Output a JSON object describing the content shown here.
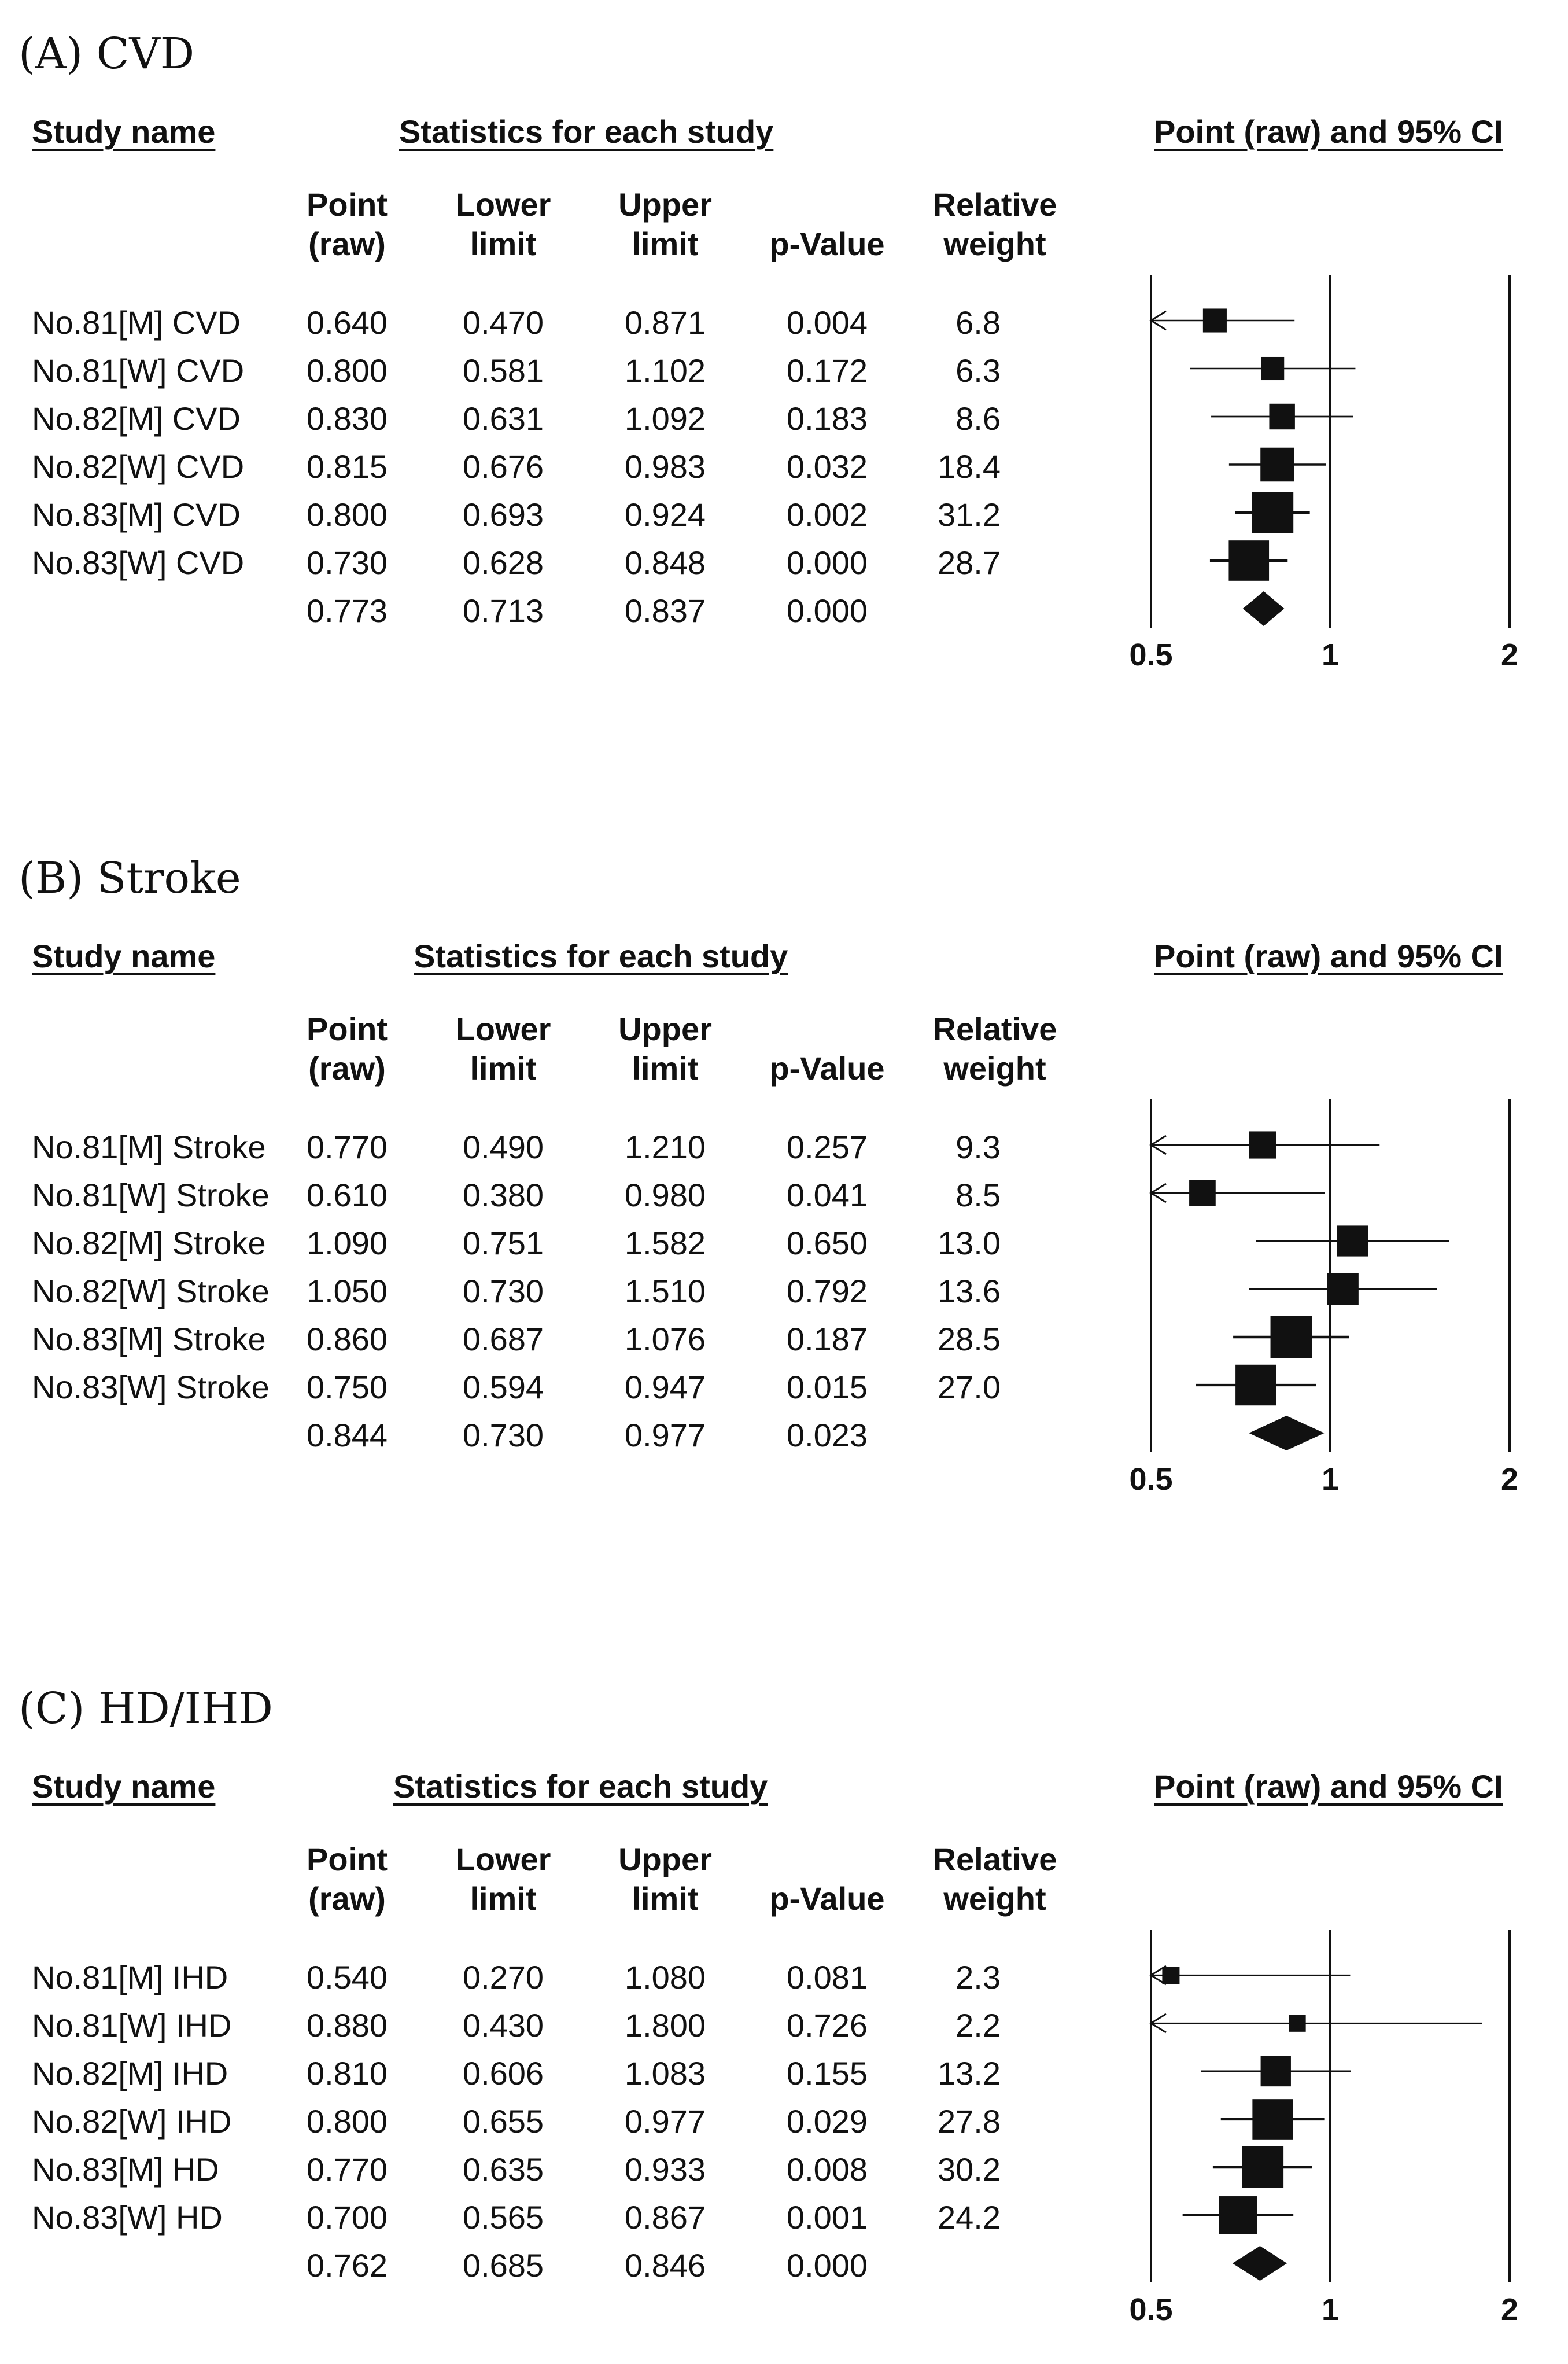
{
  "chart_data": [
    {
      "type": "forest",
      "panel_title": "(A) CVD",
      "headers": {
        "study_name": "Study name",
        "statistics": "Statistics for each study",
        "plot_title": "Point (raw) and 95% CI"
      },
      "columns": {
        "point": [
          "Point",
          "(raw)"
        ],
        "lower": [
          "Lower",
          "limit"
        ],
        "upper": [
          "Upper",
          "limit"
        ],
        "p": [
          "p-Value"
        ],
        "weight": [
          "Relative",
          "weight"
        ]
      },
      "x_scale": "log",
      "xlim": [
        0.5,
        2
      ],
      "x_ticks": [
        "0.5",
        "1",
        "2"
      ],
      "reference_line": 1,
      "studies": [
        {
          "name": "No.81[M] CVD",
          "point": "0.640",
          "lower": "0.470",
          "upper": "0.871",
          "p": "0.004",
          "weight": "6.8"
        },
        {
          "name": "No.81[W] CVD",
          "point": "0.800",
          "lower": "0.581",
          "upper": "1.102",
          "p": "0.172",
          "weight": "6.3"
        },
        {
          "name": "No.82[M] CVD",
          "point": "0.830",
          "lower": "0.631",
          "upper": "1.092",
          "p": "0.183",
          "weight": "8.6"
        },
        {
          "name": "No.82[W] CVD",
          "point": "0.815",
          "lower": "0.676",
          "upper": "0.983",
          "p": "0.032",
          "weight": "18.4"
        },
        {
          "name": "No.83[M] CVD",
          "point": "0.800",
          "lower": "0.693",
          "upper": "0.924",
          "p": "0.002",
          "weight": "31.2"
        },
        {
          "name": "No.83[W] CVD",
          "point": "0.730",
          "lower": "0.628",
          "upper": "0.848",
          "p": "0.000",
          "weight": "28.7"
        }
      ],
      "summary": {
        "point": "0.773",
        "lower": "0.713",
        "upper": "0.837",
        "p": "0.000"
      }
    },
    {
      "type": "forest",
      "panel_title": "(B) Stroke",
      "headers": {
        "study_name": "Study name",
        "statistics": "Statistics for each study",
        "plot_title": "Point (raw) and 95% CI"
      },
      "columns": {
        "point": [
          "Point",
          "(raw)"
        ],
        "lower": [
          "Lower",
          "limit"
        ],
        "upper": [
          "Upper",
          "limit"
        ],
        "p": [
          "p-Value"
        ],
        "weight": [
          "Relative",
          "weight"
        ]
      },
      "x_scale": "log",
      "xlim": [
        0.5,
        2
      ],
      "x_ticks": [
        "0.5",
        "1",
        "2"
      ],
      "reference_line": 1,
      "studies": [
        {
          "name": "No.81[M] Stroke",
          "point": "0.770",
          "lower": "0.490",
          "upper": "1.210",
          "p": "0.257",
          "weight": "9.3"
        },
        {
          "name": "No.81[W] Stroke",
          "point": "0.610",
          "lower": "0.380",
          "upper": "0.980",
          "p": "0.041",
          "weight": "8.5"
        },
        {
          "name": "No.82[M] Stroke",
          "point": "1.090",
          "lower": "0.751",
          "upper": "1.582",
          "p": "0.650",
          "weight": "13.0"
        },
        {
          "name": "No.82[W] Stroke",
          "point": "1.050",
          "lower": "0.730",
          "upper": "1.510",
          "p": "0.792",
          "weight": "13.6"
        },
        {
          "name": "No.83[M] Stroke",
          "point": "0.860",
          "lower": "0.687",
          "upper": "1.076",
          "p": "0.187",
          "weight": "28.5"
        },
        {
          "name": "No.83[W] Stroke",
          "point": "0.750",
          "lower": "0.594",
          "upper": "0.947",
          "p": "0.015",
          "weight": "27.0"
        }
      ],
      "summary": {
        "point": "0.844",
        "lower": "0.730",
        "upper": "0.977",
        "p": "0.023"
      }
    },
    {
      "type": "forest",
      "panel_title": "(C) HD/IHD",
      "headers": {
        "study_name": "Study name",
        "statistics": "Statistics for each study",
        "plot_title": "Point (raw) and 95% CI"
      },
      "columns": {
        "point": [
          "Point",
          "(raw)"
        ],
        "lower": [
          "Lower",
          "limit"
        ],
        "upper": [
          "Upper",
          "limit"
        ],
        "p": [
          "p-Value"
        ],
        "weight": [
          "Relative",
          "weight"
        ]
      },
      "x_scale": "log",
      "xlim": [
        0.5,
        2
      ],
      "x_ticks": [
        "0.5",
        "1",
        "2"
      ],
      "reference_line": 1,
      "studies": [
        {
          "name": "No.81[M] IHD",
          "point": "0.540",
          "lower": "0.270",
          "upper": "1.080",
          "p": "0.081",
          "weight": "2.3"
        },
        {
          "name": "No.81[W] IHD",
          "point": "0.880",
          "lower": "0.430",
          "upper": "1.800",
          "p": "0.726",
          "weight": "2.2"
        },
        {
          "name": "No.82[M] IHD",
          "point": "0.810",
          "lower": "0.606",
          "upper": "1.083",
          "p": "0.155",
          "weight": "13.2"
        },
        {
          "name": "No.82[W] IHD",
          "point": "0.800",
          "lower": "0.655",
          "upper": "0.977",
          "p": "0.029",
          "weight": "27.8"
        },
        {
          "name": "No.83[M] HD",
          "point": "0.770",
          "lower": "0.635",
          "upper": "0.933",
          "p": "0.008",
          "weight": "30.2"
        },
        {
          "name": "No.83[W] HD",
          "point": "0.700",
          "lower": "0.565",
          "upper": "0.867",
          "p": "0.001",
          "weight": "24.2"
        }
      ],
      "summary": {
        "point": "0.762",
        "lower": "0.685",
        "upper": "0.846",
        "p": "0.000"
      }
    }
  ]
}
